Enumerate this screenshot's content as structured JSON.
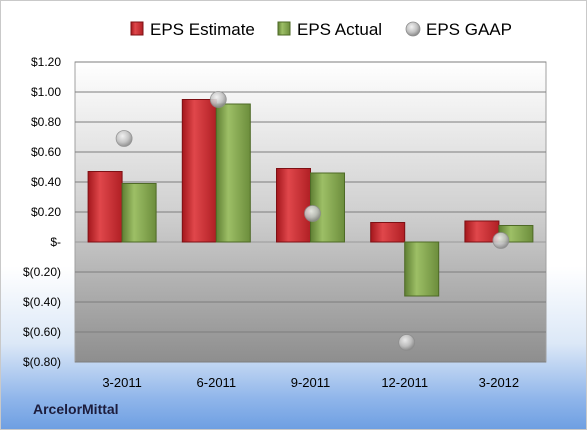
{
  "company": "ArcelorMittal",
  "chart_data": {
    "type": "bar",
    "categories": [
      "3-2011",
      "6-2011",
      "9-2011",
      "12-2011",
      "3-2012"
    ],
    "series": [
      {
        "name": "EPS Estimate",
        "kind": "bar",
        "color": "#c0252a",
        "values": [
          0.47,
          0.95,
          0.49,
          0.13,
          0.14
        ]
      },
      {
        "name": "EPS Actual",
        "kind": "bar",
        "color": "#7ea04a",
        "values": [
          0.39,
          0.92,
          0.46,
          -0.36,
          0.11
        ]
      },
      {
        "name": "EPS GAAP",
        "kind": "marker",
        "color": "#b8b8b8",
        "values": [
          0.69,
          0.95,
          0.19,
          -0.67,
          0.01
        ]
      }
    ],
    "ylim": [
      -0.8,
      1.2
    ],
    "yticks": [
      1.2,
      1.0,
      0.8,
      0.6,
      0.4,
      0.2,
      0,
      -0.2,
      -0.4,
      -0.6,
      -0.8
    ],
    "ytick_labels": [
      "$1.20",
      "$1.00",
      "$0.80",
      "$0.60",
      "$0.40",
      "$0.20",
      "$-",
      "$(0.20)",
      "$(0.40)",
      "$(0.60)",
      "$(0.80)"
    ],
    "grid": true,
    "legend_position": "top"
  }
}
